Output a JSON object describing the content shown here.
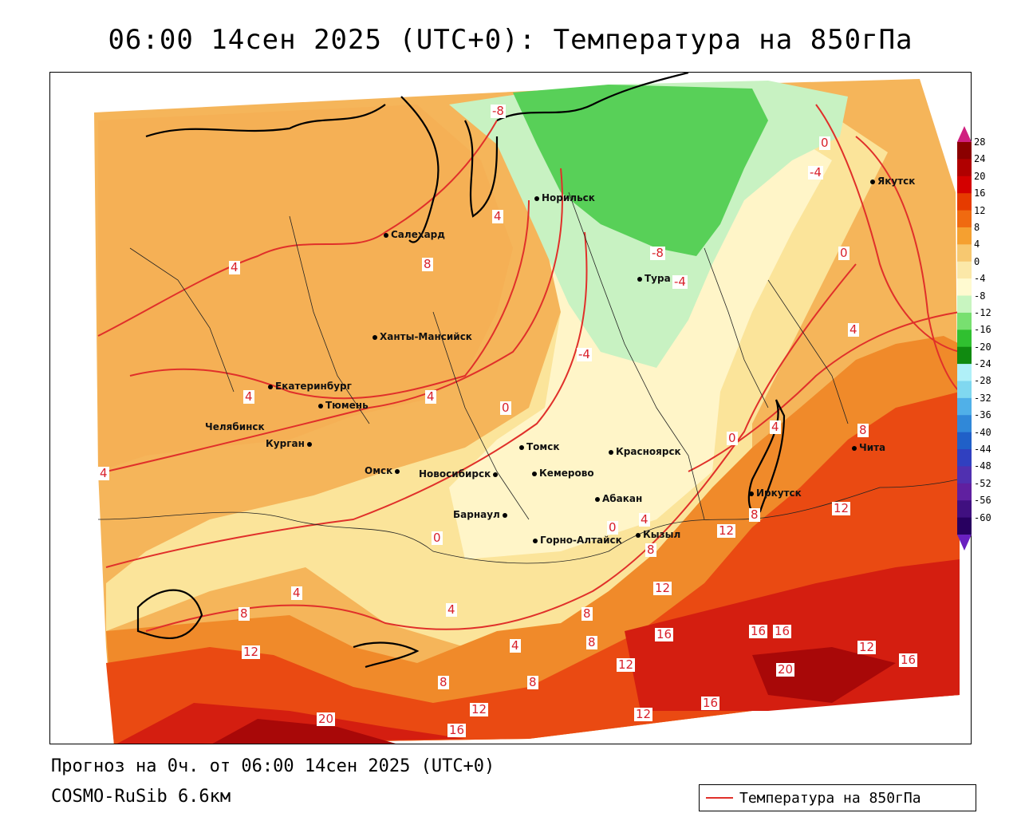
{
  "title": "06:00 14сен 2025 (UTC+0): Температура на 850гПа",
  "footer": {
    "forecast": "Прогноз на 0ч. от 06:00 14сен 2025 (UTC+0)",
    "model": "COSMO-RuSib 6.6км"
  },
  "legend": {
    "label": "Температура на 850гПа",
    "line_color": "#e0302a"
  },
  "colorbar": {
    "ticks": [
      "28",
      "24",
      "20",
      "16",
      "12",
      "8",
      "4",
      "0",
      "-4",
      "-8",
      "-12",
      "-16",
      "-20",
      "-24",
      "-28",
      "-32",
      "-36",
      "-40",
      "-44",
      "-48",
      "-52",
      "-56",
      "-60"
    ],
    "colors": [
      "#8b0000",
      "#b00000",
      "#d40000",
      "#e63b00",
      "#f06a10",
      "#f5a030",
      "#f7c870",
      "#fbe8a8",
      "#fffad0",
      "#c8f5c0",
      "#78e070",
      "#30c030",
      "#108a10",
      "#b0f0f8",
      "#80d8f0",
      "#50b0e8",
      "#3088d8",
      "#2060c8",
      "#3040c0",
      "#5030b0",
      "#6020a0",
      "#401080",
      "#280060"
    ]
  },
  "cities": [
    {
      "name": "Салехард"
    },
    {
      "name": "Норильск"
    },
    {
      "name": "Тура"
    },
    {
      "name": "Якутск"
    },
    {
      "name": "Ханты-Мансийск"
    },
    {
      "name": "Екатеринбург"
    },
    {
      "name": "Тюмень"
    },
    {
      "name": "Челябинск"
    },
    {
      "name": "Курган"
    },
    {
      "name": "Омск"
    },
    {
      "name": "Томск"
    },
    {
      "name": "Красноярск"
    },
    {
      "name": "Новосибирск"
    },
    {
      "name": "Кемерово"
    },
    {
      "name": "Барнаул"
    },
    {
      "name": "Абакан"
    },
    {
      "name": "Иркутск"
    },
    {
      "name": "Чита"
    },
    {
      "name": "Горно-Алтайск"
    },
    {
      "name": "Кызыл"
    }
  ],
  "contour_labels": [
    "-8",
    "-8",
    "-4",
    "-4",
    "0",
    "0",
    "0",
    "0",
    "0",
    "0",
    "4",
    "4",
    "4",
    "4",
    "4",
    "4",
    "4",
    "4",
    "4",
    "4",
    "4",
    "8",
    "8",
    "8",
    "8",
    "8",
    "8",
    "8",
    "8",
    "8",
    "12",
    "12",
    "12",
    "12",
    "12",
    "12",
    "12",
    "12",
    "16",
    "16",
    "16",
    "16",
    "16",
    "16",
    "20",
    "20",
    "-4"
  ]
}
